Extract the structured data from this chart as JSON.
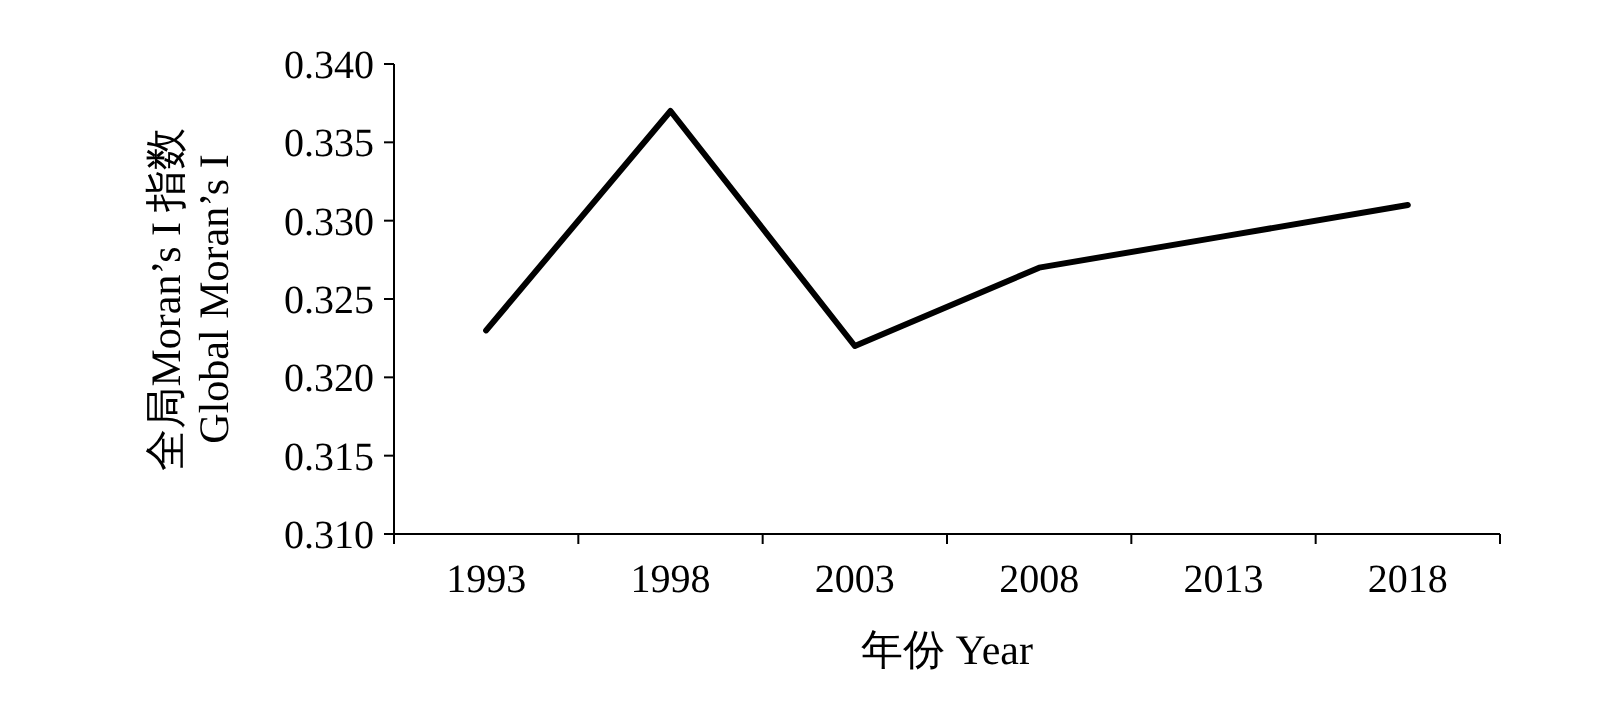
{
  "chart_data": {
    "type": "line",
    "xlabel": "年份 Year",
    "ylabel": "全局Moran’s I 指数\nGlobal Moran’s I",
    "categories": [
      "1993",
      "1998",
      "2003",
      "2008",
      "2013",
      "2018"
    ],
    "series": [
      {
        "color": "#000000",
        "values": [
          0.323,
          0.337,
          0.322,
          0.327,
          0.329,
          0.331
        ]
      }
    ],
    "ylim": [
      0.31,
      0.34
    ],
    "yticks": [
      {
        "value": 0.31,
        "label": "0.310"
      },
      0.315,
      {
        "value": 0.32,
        "label": "0.320"
      },
      0.325,
      {
        "value": 0.33,
        "label": "0.330"
      },
      0.335,
      {
        "value": 0.34,
        "label": "0.340"
      }
    ],
    "grid": false
  }
}
